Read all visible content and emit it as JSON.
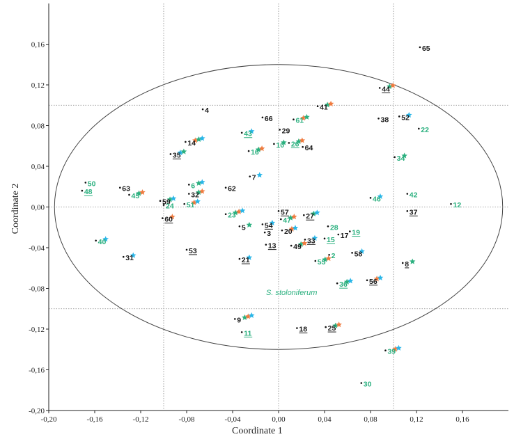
{
  "chart_data": {
    "type": "scatter",
    "xlabel": "Coordinate 1",
    "ylabel": "Coordinate 2",
    "xlim": [
      -0.2,
      0.2
    ],
    "ylim": [
      -0.2,
      0.2
    ],
    "x_ticks": [
      "-0,20",
      "-0,16",
      "-0,12",
      "-0,08",
      "-0,04",
      "0,00",
      "0,04",
      "0,08",
      "0,12",
      "0,16"
    ],
    "x_tick_values": [
      -0.2,
      -0.16,
      -0.12,
      -0.08,
      -0.04,
      0.0,
      0.04,
      0.08,
      0.12,
      0.16
    ],
    "y_ticks": [
      "-0,20",
      "-0,16",
      "-0,12",
      "-0,08",
      "-0,04",
      "0,00",
      "0,04",
      "0,08",
      "0,12",
      "0,16"
    ],
    "y_tick_values": [
      -0.2,
      -0.16,
      -0.12,
      -0.08,
      -0.04,
      0.0,
      0.04,
      0.08,
      0.12,
      0.16
    ],
    "reference_lines": {
      "x": [
        -0.1,
        0.0,
        0.1
      ],
      "y": [
        -0.1,
        0.0,
        0.1
      ]
    },
    "ellipse": {
      "cx": 0.0,
      "cy": 0.0,
      "rx": 0.195,
      "ry": 0.14
    },
    "annotation": "S. stoloniferum",
    "annotation_x": 0.01,
    "annotation_y": -0.083,
    "colors": {
      "black": "#1a1a1a",
      "green": "#2bb07f",
      "orange": "#f07b3f",
      "blue": "#29b6e8"
    },
    "points": [
      {
        "label": "65",
        "x": 0.123,
        "y": 0.157,
        "color": "black",
        "underline": false,
        "stars": []
      },
      {
        "label": "44",
        "x": 0.088,
        "y": 0.117,
        "color": "black",
        "underline": true,
        "stars": [
          "green",
          "orange"
        ]
      },
      {
        "label": "41",
        "x": 0.034,
        "y": 0.099,
        "color": "black",
        "underline": false,
        "stars": [
          "green",
          "orange"
        ]
      },
      {
        "label": "4",
        "x": -0.066,
        "y": 0.096,
        "color": "black",
        "underline": false,
        "stars": []
      },
      {
        "label": "66",
        "x": -0.014,
        "y": 0.088,
        "color": "black",
        "underline": false,
        "stars": []
      },
      {
        "label": "61",
        "x": 0.013,
        "y": 0.086,
        "color": "green",
        "underline": false,
        "stars": [
          "orange",
          "green"
        ]
      },
      {
        "label": "52",
        "x": 0.105,
        "y": 0.089,
        "color": "black",
        "underline": false,
        "stars": [
          "blue"
        ]
      },
      {
        "label": "38",
        "x": 0.087,
        "y": 0.087,
        "color": "black",
        "underline": false,
        "stars": []
      },
      {
        "label": "22",
        "x": 0.122,
        "y": 0.077,
        "color": "green",
        "underline": false,
        "stars": []
      },
      {
        "label": "29",
        "x": 0.001,
        "y": 0.076,
        "color": "black",
        "underline": false,
        "stars": []
      },
      {
        "label": "43",
        "x": -0.032,
        "y": 0.073,
        "color": "green",
        "underline": true,
        "stars": [
          "blue"
        ]
      },
      {
        "label": "14",
        "x": -0.081,
        "y": 0.064,
        "color": "black",
        "underline": false,
        "stars": [
          "orange",
          "green",
          "blue"
        ]
      },
      {
        "label": "10",
        "x": -0.004,
        "y": 0.062,
        "color": "green",
        "underline": false,
        "stars": [
          "green"
        ]
      },
      {
        "label": "26",
        "x": 0.009,
        "y": 0.063,
        "color": "green",
        "underline": true,
        "stars": [
          "green",
          "orange"
        ]
      },
      {
        "label": "64",
        "x": 0.021,
        "y": 0.059,
        "color": "black",
        "underline": false,
        "stars": []
      },
      {
        "label": "16",
        "x": -0.026,
        "y": 0.055,
        "color": "green",
        "underline": false,
        "stars": [
          "green",
          "orange"
        ]
      },
      {
        "label": "35",
        "x": -0.094,
        "y": 0.052,
        "color": "black",
        "underline": true,
        "stars": [
          "blue",
          "green"
        ]
      },
      {
        "label": "34",
        "x": 0.101,
        "y": 0.049,
        "color": "green",
        "underline": false,
        "stars": [
          "green"
        ]
      },
      {
        "label": "7",
        "x": -0.025,
        "y": 0.03,
        "color": "black",
        "underline": false,
        "stars": [
          "blue"
        ]
      },
      {
        "label": "6",
        "x": -0.078,
        "y": 0.022,
        "color": "green",
        "underline": false,
        "stars": [
          "green",
          "blue"
        ]
      },
      {
        "label": "50",
        "x": -0.168,
        "y": 0.024,
        "color": "green",
        "underline": false,
        "stars": []
      },
      {
        "label": "48",
        "x": -0.171,
        "y": 0.016,
        "color": "green",
        "underline": true,
        "stars": []
      },
      {
        "label": "63",
        "x": -0.138,
        "y": 0.019,
        "color": "black",
        "underline": false,
        "stars": []
      },
      {
        "label": "62",
        "x": -0.046,
        "y": 0.019,
        "color": "black",
        "underline": false,
        "stars": []
      },
      {
        "label": "45",
        "x": -0.13,
        "y": 0.012,
        "color": "green",
        "underline": false,
        "stars": [
          "green",
          "orange"
        ]
      },
      {
        "label": "32",
        "x": -0.078,
        "y": 0.013,
        "color": "black",
        "underline": false,
        "stars": [
          "green",
          "orange"
        ]
      },
      {
        "label": "42",
        "x": 0.112,
        "y": 0.013,
        "color": "green",
        "underline": false,
        "stars": []
      },
      {
        "label": "46",
        "x": 0.08,
        "y": 0.009,
        "color": "green",
        "underline": false,
        "stars": [
          "blue"
        ]
      },
      {
        "label": "12",
        "x": 0.15,
        "y": 0.003,
        "color": "green",
        "underline": false,
        "stars": []
      },
      {
        "label": "59",
        "x": -0.103,
        "y": 0.006,
        "color": "black",
        "underline": false,
        "stars": [
          "green",
          "blue"
        ]
      },
      {
        "label": "24",
        "x": -0.1,
        "y": 0.002,
        "color": "green",
        "underline": false,
        "stars": []
      },
      {
        "label": "51",
        "x": -0.082,
        "y": 0.003,
        "color": "green",
        "underline": false,
        "stars": [
          "orange",
          "blue"
        ]
      },
      {
        "label": "37",
        "x": 0.112,
        "y": -0.004,
        "color": "black",
        "underline": true,
        "stars": []
      },
      {
        "label": "57",
        "x": 0.0,
        "y": -0.004,
        "color": "black",
        "underline": true,
        "stars": []
      },
      {
        "label": "23",
        "x": -0.046,
        "y": -0.007,
        "color": "green",
        "underline": false,
        "stars": [
          "green",
          "orange",
          "blue"
        ]
      },
      {
        "label": "60",
        "x": -0.101,
        "y": -0.011,
        "color": "black",
        "underline": true,
        "stars": [
          "orange"
        ]
      },
      {
        "label": "47",
        "x": 0.002,
        "y": -0.012,
        "color": "green",
        "underline": false,
        "stars": [
          "green",
          "orange"
        ]
      },
      {
        "label": "27",
        "x": 0.022,
        "y": -0.008,
        "color": "black",
        "underline": true,
        "stars": [
          "green",
          "blue"
        ]
      },
      {
        "label": "54",
        "x": -0.014,
        "y": -0.017,
        "color": "black",
        "underline": true,
        "stars": [
          "blue"
        ]
      },
      {
        "label": "5",
        "x": -0.034,
        "y": -0.019,
        "color": "black",
        "underline": false,
        "stars": [
          "green"
        ]
      },
      {
        "label": "3",
        "x": -0.012,
        "y": -0.025,
        "color": "black",
        "underline": false,
        "stars": []
      },
      {
        "label": "20",
        "x": 0.003,
        "y": -0.023,
        "color": "black",
        "underline": false,
        "stars": [
          "orange",
          "blue"
        ]
      },
      {
        "label": "28",
        "x": 0.043,
        "y": -0.019,
        "color": "green",
        "underline": false,
        "stars": []
      },
      {
        "label": "17",
        "x": 0.052,
        "y": -0.027,
        "color": "black",
        "underline": false,
        "stars": []
      },
      {
        "label": "19",
        "x": 0.062,
        "y": -0.024,
        "color": "green",
        "underline": true,
        "stars": []
      },
      {
        "label": "15",
        "x": 0.04,
        "y": -0.031,
        "color": "green",
        "underline": true,
        "stars": []
      },
      {
        "label": "33",
        "x": 0.023,
        "y": -0.032,
        "color": "black",
        "underline": true,
        "stars": [
          "blue"
        ]
      },
      {
        "label": "40",
        "x": -0.159,
        "y": -0.033,
        "color": "green",
        "underline": false,
        "stars": [
          "blue"
        ]
      },
      {
        "label": "13",
        "x": -0.011,
        "y": -0.037,
        "color": "black",
        "underline": true,
        "stars": []
      },
      {
        "label": "49",
        "x": 0.011,
        "y": -0.038,
        "color": "black",
        "underline": false,
        "stars": [
          "green",
          "orange"
        ]
      },
      {
        "label": "53",
        "x": -0.08,
        "y": -0.042,
        "color": "black",
        "underline": true,
        "stars": []
      },
      {
        "label": "58",
        "x": 0.064,
        "y": -0.045,
        "color": "black",
        "underline": false,
        "stars": [
          "blue"
        ]
      },
      {
        "label": "2",
        "x": 0.044,
        "y": -0.047,
        "color": "green",
        "underline": false,
        "stars": []
      },
      {
        "label": "31",
        "x": -0.135,
        "y": -0.049,
        "color": "black",
        "underline": false,
        "stars": [
          "blue"
        ]
      },
      {
        "label": "21",
        "x": -0.034,
        "y": -0.051,
        "color": "black",
        "underline": true,
        "stars": [
          "blue"
        ]
      },
      {
        "label": "55",
        "x": 0.032,
        "y": -0.053,
        "color": "green",
        "underline": false,
        "stars": [
          "green",
          "orange"
        ]
      },
      {
        "label": "8",
        "x": 0.108,
        "y": -0.055,
        "color": "black",
        "underline": true,
        "stars": [
          "green"
        ]
      },
      {
        "label": "56",
        "x": 0.077,
        "y": -0.072,
        "color": "black",
        "underline": true,
        "stars": [
          "orange",
          "blue"
        ]
      },
      {
        "label": "36",
        "x": 0.051,
        "y": -0.075,
        "color": "green",
        "underline": true,
        "stars": [
          "green",
          "blue"
        ]
      },
      {
        "label": "9",
        "x": -0.038,
        "y": -0.11,
        "color": "black",
        "underline": false,
        "stars": [
          "green",
          "orange",
          "blue"
        ]
      },
      {
        "label": "18",
        "x": 0.016,
        "y": -0.119,
        "color": "black",
        "underline": true,
        "stars": []
      },
      {
        "label": "25",
        "x": 0.041,
        "y": -0.118,
        "color": "black",
        "underline": true,
        "stars": [
          "green",
          "orange"
        ]
      },
      {
        "label": "11",
        "x": -0.032,
        "y": -0.123,
        "color": "green",
        "underline": true,
        "stars": []
      },
      {
        "label": "39",
        "x": 0.093,
        "y": -0.141,
        "color": "green",
        "underline": false,
        "stars": [
          "orange",
          "blue"
        ]
      },
      {
        "label": "30",
        "x": 0.072,
        "y": -0.173,
        "color": "green",
        "underline": false,
        "stars": []
      }
    ]
  }
}
